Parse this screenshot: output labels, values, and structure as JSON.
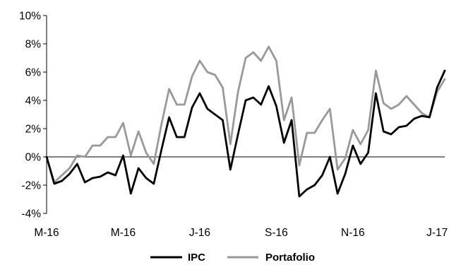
{
  "chart_data": {
    "type": "line",
    "title": "",
    "xlabel": "",
    "ylabel": "",
    "ylim": [
      -4,
      10
    ],
    "yticks": [
      {
        "value": -4,
        "label": "-4%"
      },
      {
        "value": -2,
        "label": "-2%"
      },
      {
        "value": 0,
        "label": "0%"
      },
      {
        "value": 2,
        "label": "2%"
      },
      {
        "value": 4,
        "label": "4%"
      },
      {
        "value": 6,
        "label": "6%"
      },
      {
        "value": 8,
        "label": "8%"
      },
      {
        "value": 10,
        "label": "10%"
      }
    ],
    "xticks": [
      {
        "index": 0,
        "label": "M-16"
      },
      {
        "index": 10,
        "label": "M-16"
      },
      {
        "index": 20,
        "label": "J-16"
      },
      {
        "index": 30,
        "label": "S-16"
      },
      {
        "index": 40,
        "label": "N-16"
      },
      {
        "index": 51,
        "label": "J-17"
      }
    ],
    "legend_position": "bottom",
    "grid": false,
    "series": [
      {
        "name": "IPC",
        "color": "#000000",
        "values": [
          0.0,
          -1.9,
          -1.7,
          -1.2,
          -0.5,
          -1.8,
          -1.5,
          -1.4,
          -1.1,
          -1.3,
          0.1,
          -2.6,
          -0.8,
          -1.5,
          -1.9,
          0.5,
          2.8,
          1.4,
          1.4,
          3.5,
          4.5,
          3.4,
          3.0,
          2.6,
          -0.9,
          1.6,
          4.0,
          4.2,
          3.7,
          5.0,
          3.6,
          1.0,
          2.6,
          -2.8,
          -2.3,
          -2.0,
          -1.3,
          0.0,
          -2.6,
          -1.2,
          0.8,
          -0.5,
          0.3,
          4.5,
          1.8,
          1.6,
          2.1,
          2.2,
          2.7,
          2.9,
          2.8,
          4.9,
          6.1
        ]
      },
      {
        "name": "Portafolio",
        "color": "#999999",
        "values": [
          0.0,
          -1.8,
          -1.3,
          -0.8,
          0.1,
          0.0,
          0.8,
          0.8,
          1.4,
          1.4,
          2.4,
          0.1,
          1.8,
          0.3,
          -0.5,
          2.3,
          4.8,
          3.7,
          3.7,
          5.7,
          6.8,
          6.0,
          5.8,
          4.9,
          0.9,
          4.6,
          7.0,
          7.4,
          6.8,
          7.8,
          6.8,
          2.6,
          4.2,
          -0.6,
          1.7,
          1.7,
          2.6,
          3.4,
          -0.9,
          -0.1,
          1.9,
          0.9,
          1.9,
          6.1,
          3.8,
          3.4,
          3.7,
          4.3,
          3.7,
          3.1,
          2.8,
          4.6,
          5.5
        ]
      }
    ]
  }
}
